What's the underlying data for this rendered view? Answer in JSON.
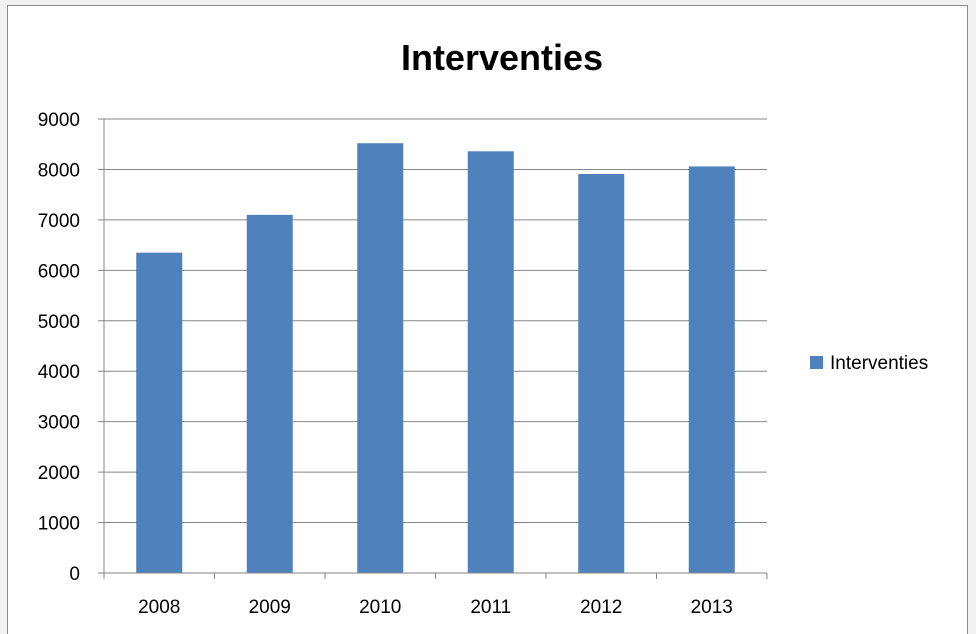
{
  "chart_data": {
    "type": "bar",
    "title": "Interventies",
    "xlabel": "",
    "ylabel": "",
    "categories": [
      "2008",
      "2009",
      "2010",
      "2011",
      "2012",
      "2013"
    ],
    "series": [
      {
        "name": "Interventies",
        "values": [
          6350,
          7100,
          8520,
          8360,
          7910,
          8060
        ],
        "color": "#4f81bd"
      }
    ],
    "ylim": [
      0,
      9000
    ],
    "yticks": [
      "0",
      "1000",
      "2000",
      "3000",
      "4000",
      "5000",
      "6000",
      "7000",
      "8000",
      "9000"
    ],
    "grid": "horizontal",
    "legend_position": "right"
  }
}
